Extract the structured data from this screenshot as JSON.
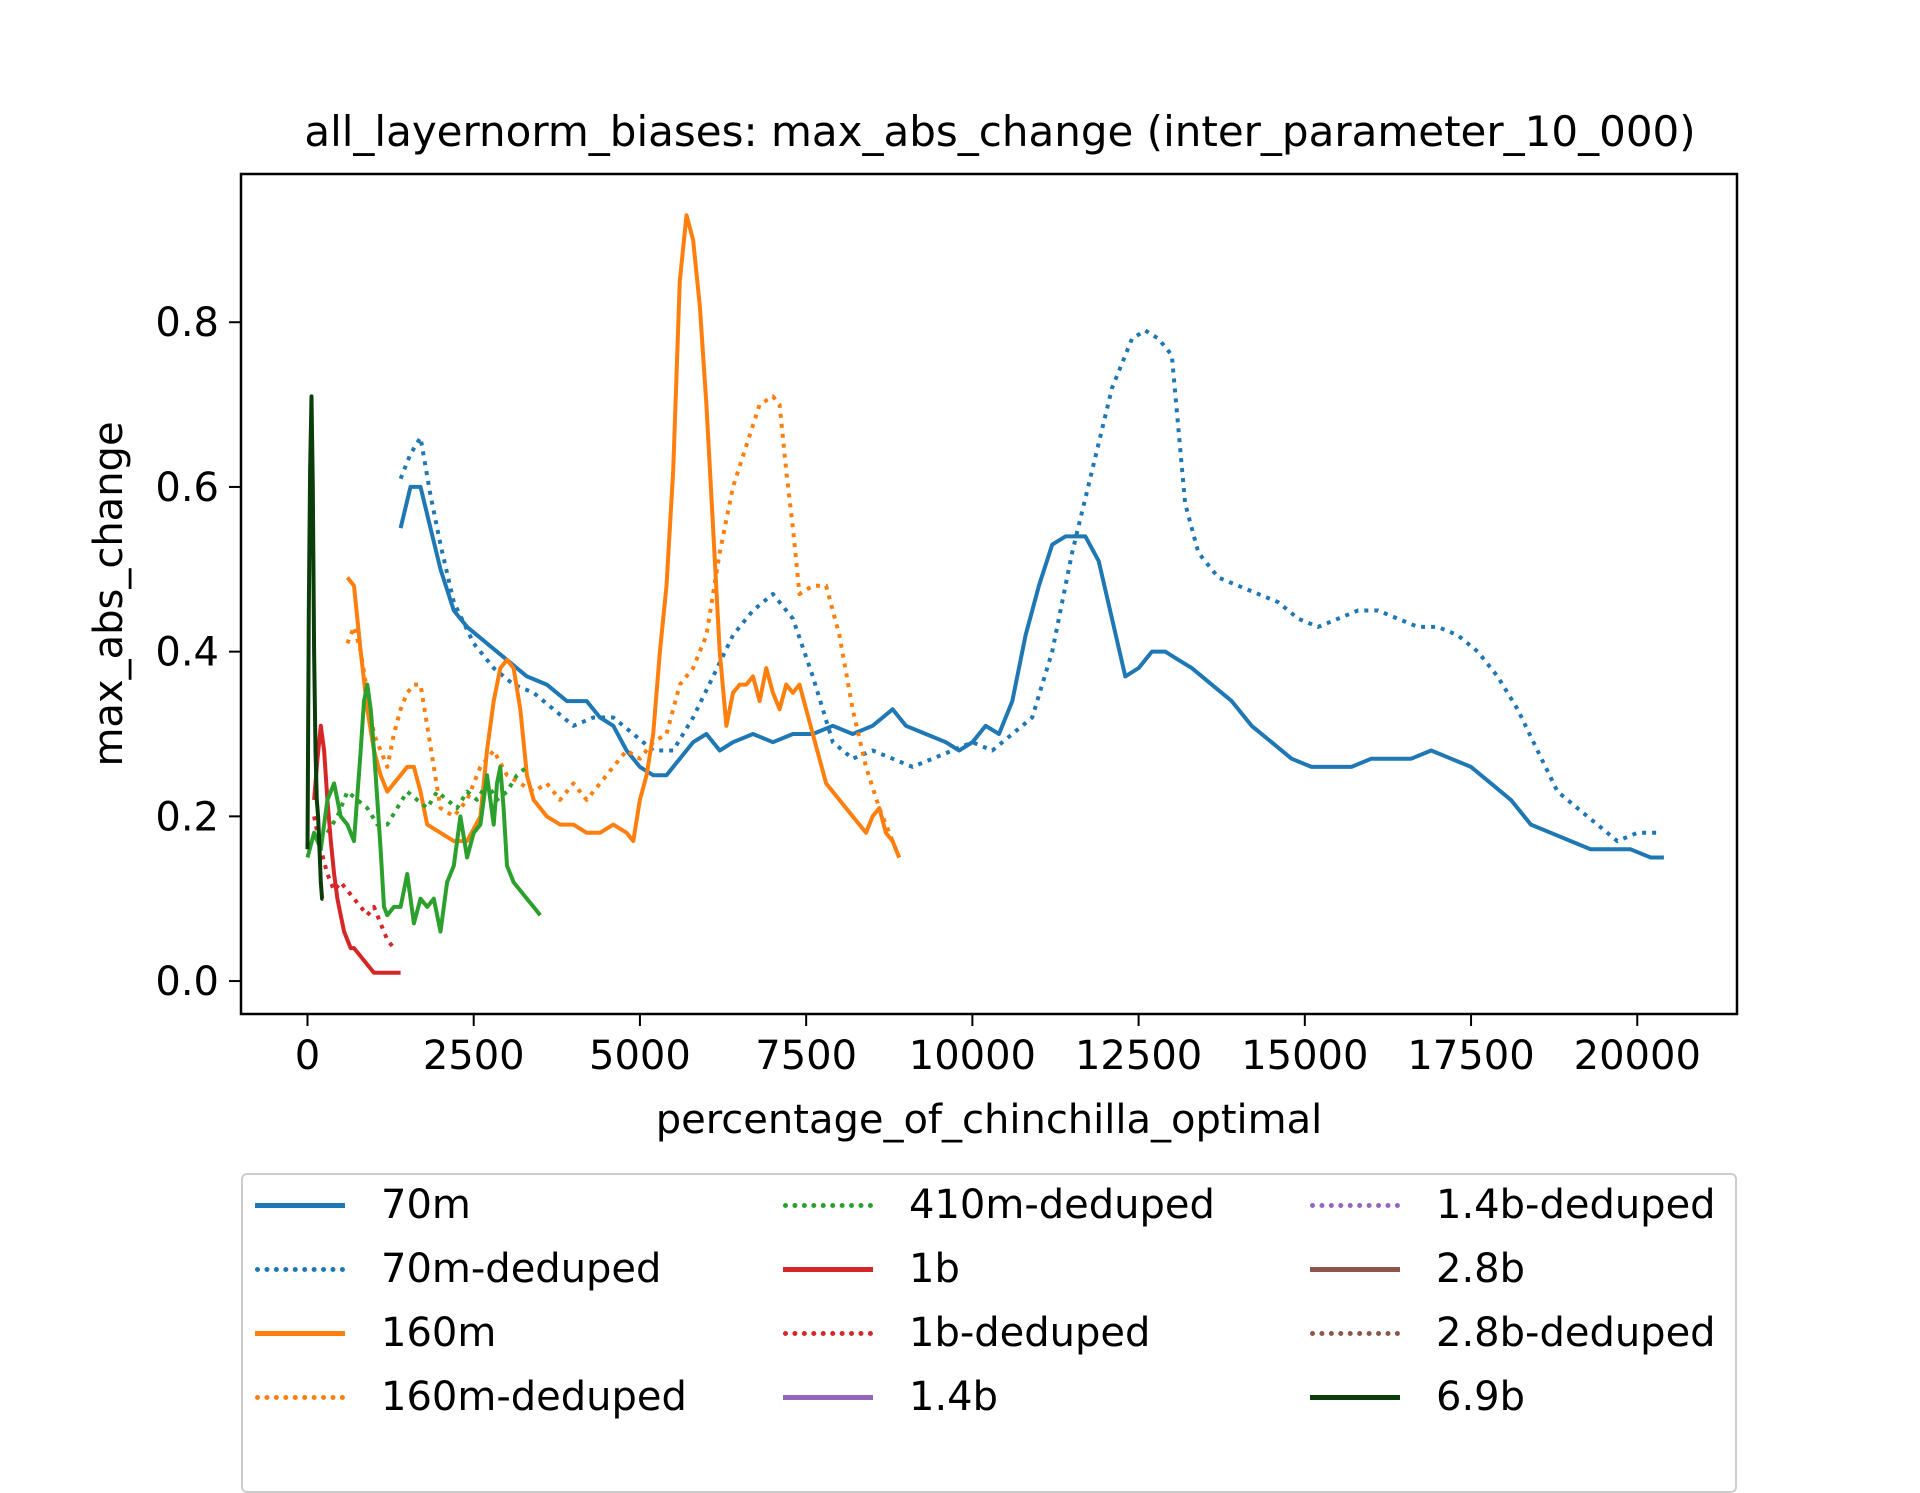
{
  "chart_data": {
    "type": "line",
    "title": "all_layernorm_biases: max_abs_change (inter_parameter_10_000)",
    "xlabel": "percentage_of_chinchilla_optimal",
    "ylabel": "max_abs_change",
    "xlim": [
      -1000,
      21500
    ],
    "ylim": [
      -0.04,
      0.98
    ],
    "xticks": [
      0,
      2500,
      5000,
      7500,
      10000,
      12500,
      15000,
      17500,
      20000
    ],
    "yticks": [
      0.0,
      0.2,
      0.4,
      0.6,
      0.8
    ],
    "grid": false,
    "legend_position": "below",
    "series": [
      {
        "name": "70m",
        "color": "#1f77b4",
        "style": "solid",
        "x": [
          1400,
          1550,
          1700,
          1850,
          2000,
          2200,
          2400,
          2700,
          3000,
          3300,
          3600,
          3900,
          4200,
          4400,
          4600,
          4800,
          5000,
          5200,
          5400,
          5600,
          5800,
          6000,
          6200,
          6400,
          6700,
          7000,
          7300,
          7600,
          7900,
          8200,
          8500,
          8800,
          9000,
          9300,
          9600,
          9800,
          10000,
          10200,
          10400,
          10600,
          10800,
          11000,
          11200,
          11400,
          11700,
          11900,
          12100,
          12300,
          12500,
          12700,
          12900,
          13100,
          13300,
          13600,
          13900,
          14200,
          14500,
          14800,
          15100,
          15400,
          15700,
          16000,
          16300,
          16600,
          16900,
          17200,
          17500,
          17800,
          18100,
          18400,
          18700,
          19000,
          19300,
          19600,
          19900,
          20200,
          20400
        ],
        "y": [
          0.55,
          0.6,
          0.6,
          0.55,
          0.5,
          0.45,
          0.43,
          0.41,
          0.39,
          0.37,
          0.36,
          0.34,
          0.34,
          0.32,
          0.31,
          0.28,
          0.26,
          0.25,
          0.25,
          0.27,
          0.29,
          0.3,
          0.28,
          0.29,
          0.3,
          0.29,
          0.3,
          0.3,
          0.31,
          0.3,
          0.31,
          0.33,
          0.31,
          0.3,
          0.29,
          0.28,
          0.29,
          0.31,
          0.3,
          0.34,
          0.42,
          0.48,
          0.53,
          0.54,
          0.54,
          0.51,
          0.44,
          0.37,
          0.38,
          0.4,
          0.4,
          0.39,
          0.38,
          0.36,
          0.34,
          0.31,
          0.29,
          0.27,
          0.26,
          0.26,
          0.26,
          0.27,
          0.27,
          0.27,
          0.28,
          0.27,
          0.26,
          0.24,
          0.22,
          0.19,
          0.18,
          0.17,
          0.16,
          0.16,
          0.16,
          0.15,
          0.15
        ]
      },
      {
        "name": "70m-deduped",
        "color": "#1f77b4",
        "style": "dotted",
        "x": [
          1400,
          1550,
          1700,
          1850,
          2000,
          2200,
          2500,
          2800,
          3100,
          3400,
          3700,
          4000,
          4300,
          4600,
          4900,
          5200,
          5500,
          5800,
          6100,
          6400,
          6700,
          7000,
          7300,
          7600,
          7900,
          8200,
          8500,
          8800,
          9100,
          9400,
          9700,
          10000,
          10300,
          10600,
          10900,
          11200,
          11500,
          11800,
          12100,
          12400,
          12600,
          12800,
          13000,
          13200,
          13400,
          13700,
          14000,
          14300,
          14600,
          14900,
          15200,
          15500,
          15800,
          16100,
          16400,
          16700,
          17000,
          17300,
          17600,
          17900,
          18200,
          18500,
          18800,
          19100,
          19400,
          19700,
          20000,
          20300
        ],
        "y": [
          0.61,
          0.64,
          0.66,
          0.59,
          0.53,
          0.46,
          0.41,
          0.38,
          0.36,
          0.35,
          0.33,
          0.31,
          0.32,
          0.32,
          0.3,
          0.28,
          0.28,
          0.32,
          0.37,
          0.42,
          0.45,
          0.47,
          0.44,
          0.37,
          0.29,
          0.27,
          0.28,
          0.27,
          0.26,
          0.27,
          0.28,
          0.29,
          0.28,
          0.3,
          0.32,
          0.4,
          0.52,
          0.62,
          0.72,
          0.78,
          0.79,
          0.78,
          0.76,
          0.58,
          0.52,
          0.49,
          0.48,
          0.47,
          0.46,
          0.44,
          0.43,
          0.44,
          0.45,
          0.45,
          0.44,
          0.43,
          0.43,
          0.42,
          0.4,
          0.37,
          0.33,
          0.28,
          0.23,
          0.21,
          0.19,
          0.17,
          0.18,
          0.18
        ]
      },
      {
        "name": "160m",
        "color": "#ff7f0e",
        "style": "solid",
        "x": [
          600,
          700,
          800,
          900,
          1000,
          1100,
          1200,
          1300,
          1400,
          1500,
          1600,
          1700,
          1800,
          2000,
          2200,
          2400,
          2600,
          2700,
          2800,
          2900,
          3000,
          3100,
          3200,
          3300,
          3400,
          3600,
          3800,
          4000,
          4200,
          4400,
          4600,
          4800,
          4900,
          5000,
          5100,
          5200,
          5300,
          5400,
          5500,
          5600,
          5700,
          5800,
          5900,
          6000,
          6100,
          6200,
          6300,
          6400,
          6500,
          6600,
          6700,
          6800,
          6900,
          7000,
          7100,
          7200,
          7300,
          7400,
          7600,
          7800,
          8000,
          8200,
          8400,
          8500,
          8600,
          8700,
          8800,
          8900
        ],
        "y": [
          0.49,
          0.48,
          0.4,
          0.33,
          0.28,
          0.25,
          0.23,
          0.24,
          0.25,
          0.26,
          0.26,
          0.23,
          0.19,
          0.18,
          0.17,
          0.17,
          0.2,
          0.28,
          0.34,
          0.38,
          0.39,
          0.38,
          0.33,
          0.25,
          0.22,
          0.2,
          0.19,
          0.19,
          0.18,
          0.18,
          0.19,
          0.18,
          0.17,
          0.22,
          0.25,
          0.3,
          0.4,
          0.48,
          0.62,
          0.85,
          0.93,
          0.9,
          0.82,
          0.7,
          0.55,
          0.4,
          0.31,
          0.35,
          0.36,
          0.36,
          0.37,
          0.34,
          0.38,
          0.35,
          0.33,
          0.36,
          0.35,
          0.36,
          0.3,
          0.24,
          0.22,
          0.2,
          0.18,
          0.2,
          0.21,
          0.18,
          0.17,
          0.15
        ]
      },
      {
        "name": "160m-deduped",
        "color": "#ff7f0e",
        "style": "dotted",
        "x": [
          600,
          700,
          800,
          900,
          1000,
          1100,
          1200,
          1300,
          1400,
          1500,
          1600,
          1700,
          1800,
          1900,
          2000,
          2200,
          2400,
          2600,
          2800,
          3000,
          3200,
          3400,
          3600,
          3800,
          4000,
          4200,
          4400,
          4600,
          4800,
          5000,
          5200,
          5400,
          5600,
          5800,
          6000,
          6200,
          6400,
          6600,
          6800,
          7000,
          7100,
          7200,
          7300,
          7400,
          7600,
          7800,
          8000,
          8200,
          8400,
          8600,
          8800,
          8900
        ],
        "y": [
          0.41,
          0.43,
          0.4,
          0.35,
          0.3,
          0.28,
          0.26,
          0.3,
          0.33,
          0.35,
          0.36,
          0.36,
          0.31,
          0.26,
          0.21,
          0.2,
          0.22,
          0.26,
          0.28,
          0.25,
          0.24,
          0.23,
          0.24,
          0.22,
          0.24,
          0.22,
          0.24,
          0.26,
          0.28,
          0.27,
          0.29,
          0.3,
          0.36,
          0.38,
          0.42,
          0.52,
          0.6,
          0.65,
          0.7,
          0.71,
          0.7,
          0.62,
          0.55,
          0.47,
          0.48,
          0.48,
          0.42,
          0.33,
          0.26,
          0.21,
          0.17,
          0.15
        ]
      },
      {
        "name": "410m-deduped",
        "color": "#2ca02c",
        "style": "dotted",
        "x": [
          300,
          450,
          600,
          750,
          900,
          1050,
          1200,
          1350,
          1500,
          1650,
          1800,
          1950,
          2100,
          2250,
          2400,
          2550,
          2700,
          2850,
          3000,
          3150,
          3300
        ],
        "y": [
          0.18,
          0.2,
          0.23,
          0.22,
          0.21,
          0.19,
          0.19,
          0.21,
          0.23,
          0.22,
          0.21,
          0.23,
          0.22,
          0.21,
          0.23,
          0.22,
          0.24,
          0.22,
          0.23,
          0.25,
          0.26
        ]
      },
      {
        "name": "1b",
        "color": "#d62728",
        "style": "solid",
        "x": [
          100,
          150,
          200,
          250,
          300,
          350,
          400,
          450,
          500,
          550,
          600,
          650,
          700,
          800,
          900,
          1000,
          1100,
          1200,
          1300,
          1400
        ],
        "y": [
          0.22,
          0.27,
          0.31,
          0.28,
          0.22,
          0.17,
          0.13,
          0.1,
          0.08,
          0.06,
          0.05,
          0.04,
          0.04,
          0.03,
          0.02,
          0.01,
          0.01,
          0.01,
          0.01,
          0.01
        ]
      },
      {
        "name": "1b-deduped",
        "color": "#d62728",
        "style": "dotted",
        "x": [
          100,
          200,
          300,
          400,
          500,
          600,
          700,
          800,
          900,
          1000,
          1100,
          1200,
          1300
        ],
        "y": [
          0.2,
          0.16,
          0.13,
          0.11,
          0.12,
          0.11,
          0.1,
          0.09,
          0.08,
          0.09,
          0.07,
          0.05,
          0.04
        ]
      },
      {
        "name": "1.4b",
        "color": "#9467bd",
        "style": "solid",
        "x": [],
        "y": []
      },
      {
        "name": "1.4b-deduped",
        "color": "#9467bd",
        "style": "dotted",
        "x": [],
        "y": []
      },
      {
        "name": "2.8b",
        "color": "#8c564b",
        "style": "solid",
        "x": [],
        "y": []
      },
      {
        "name": "2.8b-deduped",
        "color": "#8c564b",
        "style": "dotted",
        "x": [],
        "y": []
      },
      {
        "name": "410m",
        "color": "#2ca02c",
        "style": "solid",
        "legend": false,
        "x": [
          0,
          100,
          200,
          300,
          400,
          500,
          600,
          700,
          800,
          850,
          900,
          950,
          1000,
          1050,
          1100,
          1150,
          1200,
          1300,
          1400,
          1500,
          1600,
          1700,
          1800,
          1900,
          2000,
          2100,
          2200,
          2300,
          2400,
          2500,
          2600,
          2700,
          2800,
          2850,
          2900,
          2950,
          3000,
          3100,
          3200,
          3300,
          3400,
          3500
        ],
        "y": [
          0.15,
          0.18,
          0.16,
          0.22,
          0.24,
          0.2,
          0.19,
          0.17,
          0.28,
          0.34,
          0.36,
          0.33,
          0.28,
          0.22,
          0.16,
          0.09,
          0.08,
          0.09,
          0.09,
          0.13,
          0.07,
          0.1,
          0.09,
          0.1,
          0.06,
          0.12,
          0.14,
          0.2,
          0.15,
          0.18,
          0.19,
          0.25,
          0.19,
          0.24,
          0.26,
          0.21,
          0.14,
          0.12,
          0.11,
          0.1,
          0.09,
          0.08
        ]
      },
      {
        "name": "6.9b",
        "color": "#0a3d0a",
        "style": "solid",
        "x": [
          0,
          20,
          40,
          60,
          80,
          100,
          120,
          140,
          160,
          180,
          200,
          220,
          240
        ],
        "y": [
          0.16,
          0.45,
          0.62,
          0.71,
          0.6,
          0.4,
          0.28,
          0.22,
          0.2,
          0.16,
          0.12,
          0.1,
          0.1
        ]
      }
    ]
  },
  "legend": {
    "items": [
      {
        "label": "70m",
        "color": "#1f77b4",
        "style": "solid"
      },
      {
        "label": "70m-deduped",
        "color": "#1f77b4",
        "style": "dotted"
      },
      {
        "label": "160m",
        "color": "#ff7f0e",
        "style": "solid"
      },
      {
        "label": "160m-deduped",
        "color": "#ff7f0e",
        "style": "dotted"
      },
      {
        "label": "410m-deduped",
        "color": "#2ca02c",
        "style": "dotted"
      },
      {
        "label": "1b",
        "color": "#d62728",
        "style": "solid"
      },
      {
        "label": "1b-deduped",
        "color": "#d62728",
        "style": "dotted"
      },
      {
        "label": "1.4b",
        "color": "#9467bd",
        "style": "solid"
      },
      {
        "label": "1.4b-deduped",
        "color": "#9467bd",
        "style": "dotted"
      },
      {
        "label": "2.8b",
        "color": "#8c564b",
        "style": "solid"
      },
      {
        "label": "2.8b-deduped",
        "color": "#8c564b",
        "style": "dotted"
      },
      {
        "label": "6.9b",
        "color": "#0a3d0a",
        "style": "solid"
      }
    ]
  }
}
